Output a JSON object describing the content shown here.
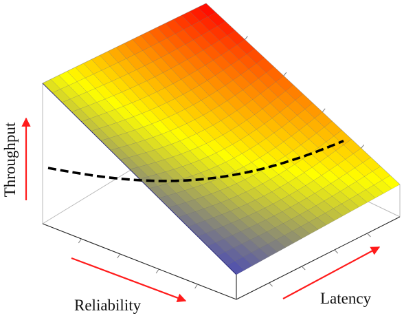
{
  "chart_data": {
    "type": "surface",
    "title": "",
    "axes": {
      "x": {
        "label": "Reliability"
      },
      "y": {
        "label": "Latency"
      },
      "z": {
        "label": "Throughput"
      }
    },
    "grid": true,
    "colormap": [
      "#0000ff",
      "#ffff00",
      "#ff0000"
    ],
    "overlay": {
      "style": "dashed",
      "color": "#000000"
    }
  }
}
